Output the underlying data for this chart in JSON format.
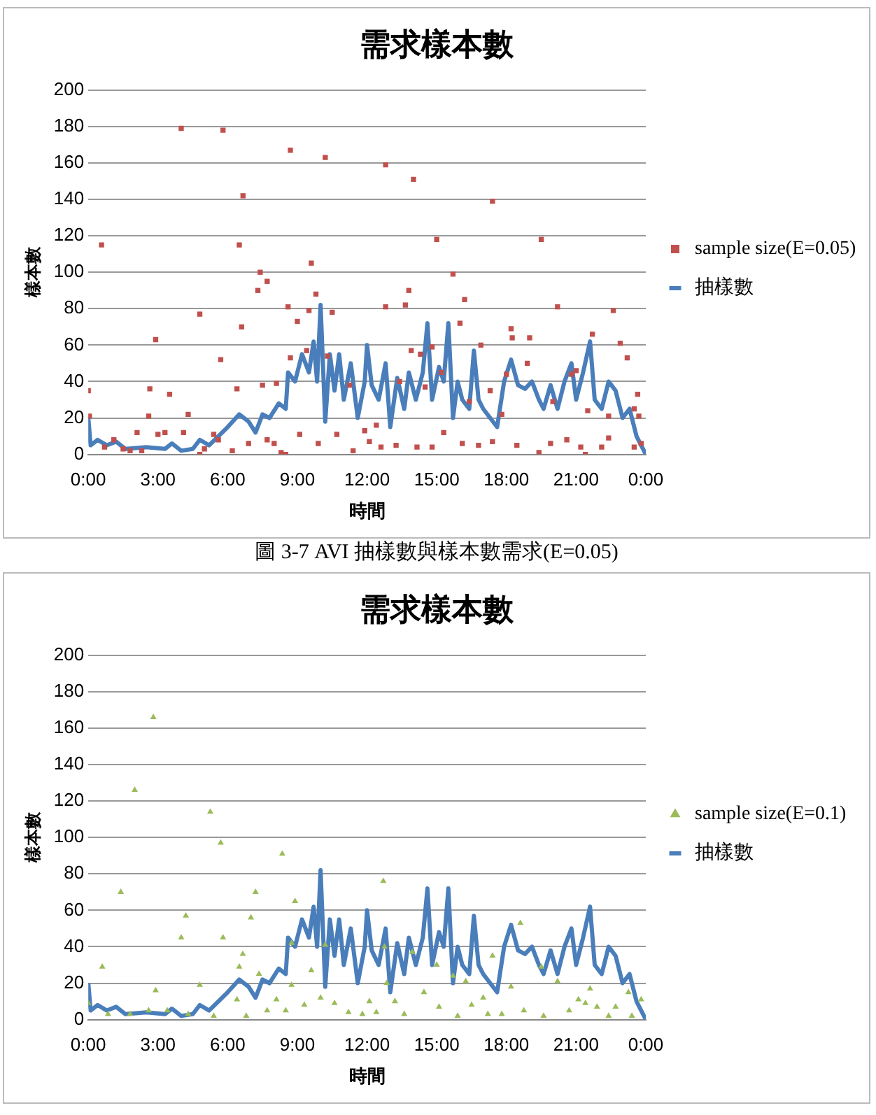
{
  "chart_data": [
    {
      "type": "line",
      "title": "需求樣本數",
      "xlabel": "時間",
      "ylabel": "樣本數",
      "xlim": [
        0,
        24
      ],
      "ylim": [
        0,
        200
      ],
      "xticks": [
        {
          "value": 0,
          "label": "0:00"
        },
        {
          "value": 3,
          "label": "3:00"
        },
        {
          "value": 6,
          "label": "6:00"
        },
        {
          "value": 9,
          "label": "9:00"
        },
        {
          "value": 12,
          "label": "12:00"
        },
        {
          "value": 15,
          "label": "15:00"
        },
        {
          "value": 18,
          "label": "18:00"
        },
        {
          "value": 21,
          "label": "21:00"
        },
        {
          "value": 24,
          "label": "0:00"
        }
      ],
      "yticks": [
        0,
        20,
        40,
        60,
        80,
        100,
        120,
        140,
        160,
        180,
        200
      ],
      "grid": "y",
      "legend": "right",
      "annotations": [
        "圖 3-7 AVI 抽樣數與樣本數需求(E=0.05)"
      ],
      "series": [
        {
          "name": "抽樣數",
          "type": "line",
          "color": "#4a7ebb",
          "marker": "none",
          "x": [
            0,
            0.1,
            0.4,
            0.8,
            1.2,
            1.6,
            2.5,
            3.3,
            3.6,
            4.0,
            4.5,
            4.8,
            5.2,
            5.6,
            6.0,
            6.5,
            6.9,
            7.2,
            7.5,
            7.8,
            8.2,
            8.5,
            8.6,
            8.9,
            9.2,
            9.5,
            9.7,
            9.85,
            10.0,
            10.2,
            10.4,
            10.6,
            10.8,
            11.0,
            11.3,
            11.6,
            11.9,
            12.0,
            12.2,
            12.5,
            12.8,
            13.0,
            13.3,
            13.6,
            13.8,
            14.1,
            14.4,
            14.6,
            14.8,
            15.1,
            15.3,
            15.5,
            15.7,
            15.9,
            16.1,
            16.4,
            16.6,
            16.8,
            17.0,
            17.3,
            17.6,
            17.9,
            18.2,
            18.5,
            18.8,
            19.1,
            19.4,
            19.6,
            19.9,
            20.2,
            20.5,
            20.8,
            21.0,
            21.3,
            21.6,
            21.8,
            22.1,
            22.4,
            22.7,
            23.0,
            23.3,
            23.6,
            24
          ],
          "values": [
            20,
            5,
            8,
            5,
            7,
            3,
            4,
            3,
            6,
            2,
            3,
            8,
            5,
            10,
            15,
            22,
            18,
            12,
            22,
            20,
            28,
            25,
            45,
            40,
            55,
            45,
            62,
            40,
            82,
            18,
            55,
            35,
            55,
            30,
            50,
            20,
            40,
            60,
            38,
            30,
            50,
            15,
            42,
            25,
            45,
            30,
            45,
            72,
            30,
            48,
            40,
            72,
            20,
            40,
            30,
            25,
            57,
            30,
            25,
            20,
            15,
            40,
            52,
            38,
            36,
            40,
            30,
            25,
            38,
            25,
            40,
            50,
            30,
            45,
            62,
            30,
            25,
            40,
            35,
            20,
            25,
            10,
            0
          ]
        },
        {
          "name": "sample size(E=0.05)",
          "type": "scatter",
          "color": "#c0504d",
          "marker": "square",
          "x": [
            0,
            0.05,
            0.57,
            4.0,
            5.8,
            6.66,
            6.5,
            7.4,
            7.3,
            7.7,
            8.7,
            10.2,
            9.6,
            9.8,
            12.8,
            14.0,
            13.8,
            13.65,
            12.8,
            15.0,
            15.7,
            17.4,
            19.5,
            20.2,
            22.6,
            16.2,
            16.0,
            2.9,
            4.8,
            6.6,
            5.7,
            8.6,
            9.0,
            9.5,
            10.5,
            18.2,
            19.0,
            18.25,
            21.7,
            22.9,
            23.2,
            16.9,
            2.65,
            3.5,
            4.3,
            6.4,
            7.5,
            8.1,
            8.7,
            9.4,
            10.3,
            11.25,
            13.4,
            13.9,
            14.3,
            14.8,
            14.5,
            15.2,
            18.0,
            18.9,
            20.8,
            21.0,
            23.65,
            23.5,
            17.8,
            2.6,
            2.1,
            3.0,
            3.3,
            4.1,
            5.6,
            6.2,
            6.9,
            7.7,
            8.0,
            8.3,
            9.1,
            9.9,
            10.7,
            11.4,
            12.1,
            12.6,
            13.25,
            14.15,
            14.8,
            15.3,
            16.1,
            16.8,
            17.4,
            18.45,
            19.4,
            19.9,
            20.6,
            21.2,
            21.4,
            22.1,
            22.4,
            23.5,
            23.8,
            0.7,
            1.1,
            1.5,
            1.8,
            2.3,
            4.8,
            5.0,
            5.4,
            8.5,
            11.9,
            12.4,
            16.4,
            17.3,
            20.0,
            21.5,
            22.4,
            23.7
          ],
          "values": [
            35,
            21,
            115,
            179,
            178,
            142,
            115,
            100,
            90,
            95,
            167,
            163,
            105,
            88,
            159,
            151,
            90,
            82,
            81,
            118,
            99,
            139,
            118,
            81,
            79,
            85,
            72,
            63,
            77,
            70,
            52,
            81,
            73,
            79,
            78,
            69,
            64,
            64,
            66,
            61,
            53,
            60,
            36,
            33,
            22,
            36,
            38,
            39,
            53,
            57,
            54,
            38,
            40,
            57,
            55,
            59,
            37,
            45,
            44,
            50,
            44,
            46,
            33,
            25,
            22,
            21,
            12,
            11,
            12,
            12,
            8,
            2,
            6,
            8,
            6,
            1,
            11,
            6,
            11,
            2,
            7,
            4,
            5,
            4,
            4,
            12,
            6,
            5,
            7,
            5,
            1,
            6,
            8,
            4,
            0,
            4,
            9,
            4,
            6,
            4,
            8,
            3,
            2,
            2,
            0,
            3,
            11,
            0,
            13,
            16,
            29,
            35,
            29,
            24,
            21,
            21
          ]
        }
      ]
    },
    {
      "type": "line",
      "title": "需求樣本數",
      "xlabel": "時間",
      "ylabel": "樣本數",
      "xlim": [
        0,
        24
      ],
      "ylim": [
        0,
        200
      ],
      "xticks": [
        {
          "value": 0,
          "label": "0:00"
        },
        {
          "value": 3,
          "label": "3:00"
        },
        {
          "value": 6,
          "label": "6:00"
        },
        {
          "value": 9,
          "label": "9:00"
        },
        {
          "value": 12,
          "label": "12:00"
        },
        {
          "value": 15,
          "label": "15:00"
        },
        {
          "value": 18,
          "label": "18:00"
        },
        {
          "value": 21,
          "label": "21:00"
        },
        {
          "value": 24,
          "label": "0:00"
        }
      ],
      "yticks": [
        0,
        20,
        40,
        60,
        80,
        100,
        120,
        140,
        160,
        180,
        200
      ],
      "grid": "y",
      "legend": "right",
      "series": [
        {
          "name": "抽樣數",
          "type": "line",
          "color": "#4a7ebb",
          "marker": "none",
          "x": [
            0,
            0.1,
            0.4,
            0.8,
            1.2,
            1.6,
            2.5,
            3.3,
            3.6,
            4.0,
            4.5,
            4.8,
            5.2,
            5.6,
            6.0,
            6.5,
            6.9,
            7.2,
            7.5,
            7.8,
            8.2,
            8.5,
            8.6,
            8.9,
            9.2,
            9.5,
            9.7,
            9.85,
            10.0,
            10.2,
            10.4,
            10.6,
            10.8,
            11.0,
            11.3,
            11.6,
            11.9,
            12.0,
            12.2,
            12.5,
            12.8,
            13.0,
            13.3,
            13.6,
            13.8,
            14.1,
            14.4,
            14.6,
            14.8,
            15.1,
            15.3,
            15.5,
            15.7,
            15.9,
            16.1,
            16.4,
            16.6,
            16.8,
            17.0,
            17.3,
            17.6,
            17.9,
            18.2,
            18.5,
            18.8,
            19.1,
            19.4,
            19.6,
            19.9,
            20.2,
            20.5,
            20.8,
            21.0,
            21.3,
            21.6,
            21.8,
            22.1,
            22.4,
            22.7,
            23.0,
            23.3,
            23.6,
            24
          ],
          "values": [
            20,
            5,
            8,
            5,
            7,
            3,
            4,
            3,
            6,
            2,
            3,
            8,
            5,
            10,
            15,
            22,
            18,
            12,
            22,
            20,
            28,
            25,
            45,
            40,
            55,
            45,
            62,
            40,
            82,
            18,
            55,
            35,
            55,
            30,
            50,
            20,
            40,
            60,
            38,
            30,
            50,
            15,
            42,
            25,
            45,
            30,
            45,
            72,
            30,
            48,
            40,
            72,
            20,
            40,
            30,
            25,
            57,
            30,
            25,
            20,
            15,
            40,
            52,
            38,
            36,
            40,
            30,
            25,
            38,
            25,
            40,
            50,
            30,
            45,
            62,
            30,
            25,
            40,
            35,
            20,
            25,
            10,
            0
          ]
        },
        {
          "name": "sample size(E=0.1)",
          "type": "scatter",
          "color": "#9bbb59",
          "marker": "triangle",
          "x": [
            0,
            0.6,
            1.4,
            2.0,
            2.8,
            2.9,
            4.0,
            4.2,
            4.8,
            5.25,
            5.7,
            5.8,
            6.5,
            6.65,
            7.0,
            7.2,
            7.35,
            8.35,
            8.75,
            8.9,
            8.75,
            9.6,
            10.2,
            12.7,
            12.75,
            12.85,
            13.95,
            15.0,
            15.7,
            16.25,
            17.4,
            18.6,
            19.5,
            21.6,
            23.25,
            23.8,
            0.85,
            1.8,
            2.6,
            3.4,
            4.3,
            5.4,
            6.4,
            6.8,
            7.7,
            8.5,
            9.3,
            10.0,
            10.6,
            11.2,
            11.8,
            12.4,
            13.2,
            13.6,
            14.45,
            15.1,
            15.9,
            16.5,
            17.2,
            17.8,
            18.2,
            18.75,
            19.6,
            20.2,
            20.7,
            21.1,
            21.9,
            22.4,
            22.7,
            23.4,
            8.1,
            12.1,
            17.0,
            21.4
          ],
          "values": [
            9,
            29,
            70,
            126,
            166,
            16,
            45,
            57,
            19,
            114,
            97,
            45,
            29,
            36,
            56,
            70,
            25,
            91,
            19,
            65,
            42,
            27,
            41,
            76,
            40,
            20,
            37,
            30,
            24,
            21,
            35,
            53,
            29,
            17,
            15,
            11,
            3,
            3,
            5,
            5,
            3,
            2,
            11,
            2,
            5,
            5,
            8,
            12,
            9,
            4,
            3,
            4,
            10,
            3,
            15,
            7,
            2,
            8,
            3,
            3,
            18,
            5,
            2,
            21,
            5,
            11,
            7,
            2,
            7,
            2,
            11,
            10,
            12,
            9
          ]
        }
      ]
    }
  ]
}
